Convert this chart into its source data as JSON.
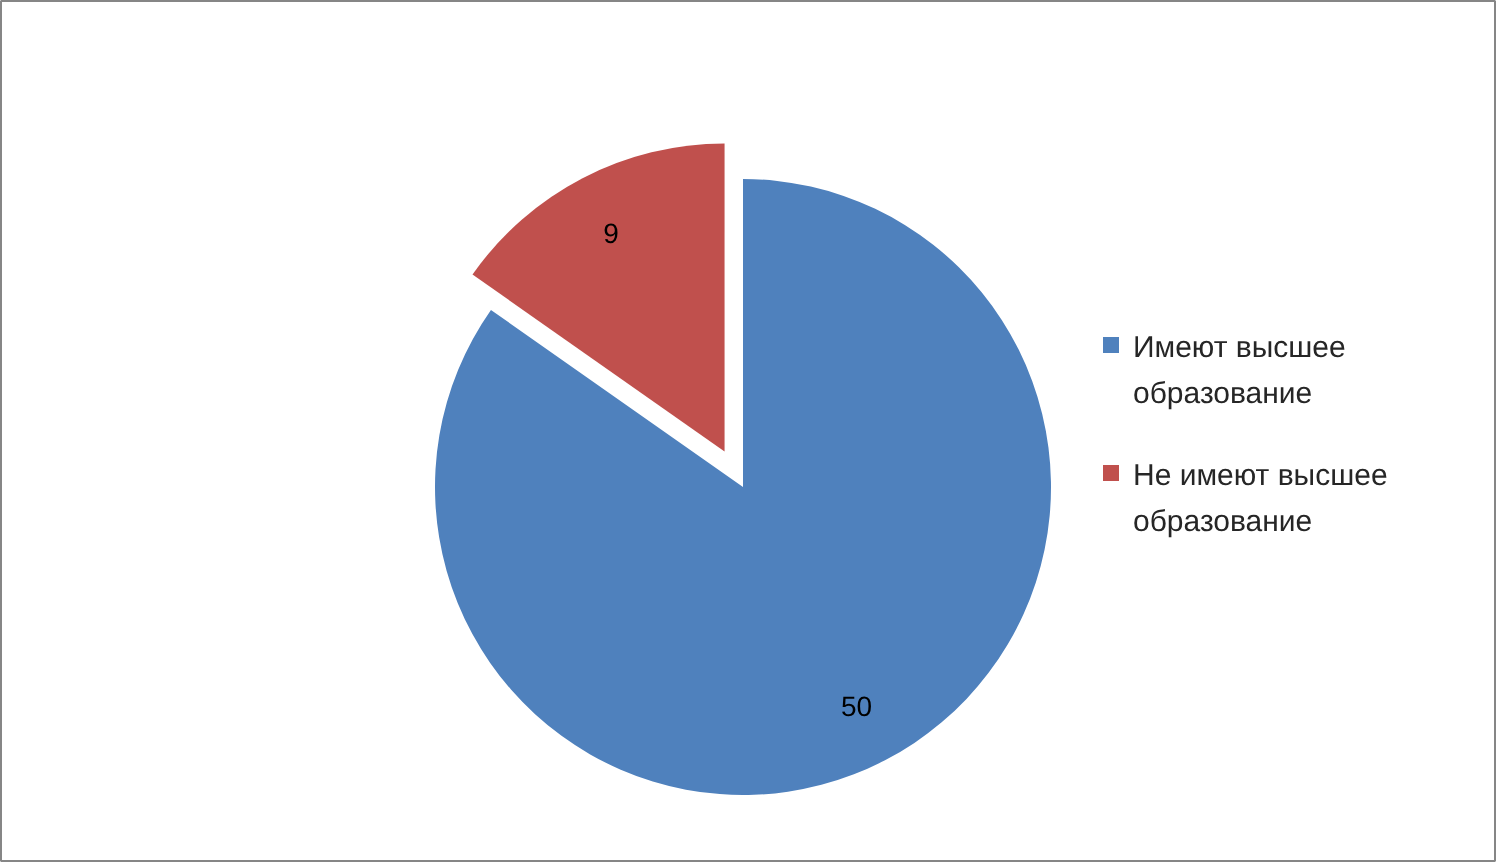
{
  "chart_data": {
    "type": "pie",
    "categories": [
      "Имеют высшее образование",
      "Не имеют высшее образование"
    ],
    "values": [
      50,
      9
    ],
    "colors": [
      "#4f81bd",
      "#c0504d"
    ],
    "data_labels": true,
    "legend": "right"
  }
}
